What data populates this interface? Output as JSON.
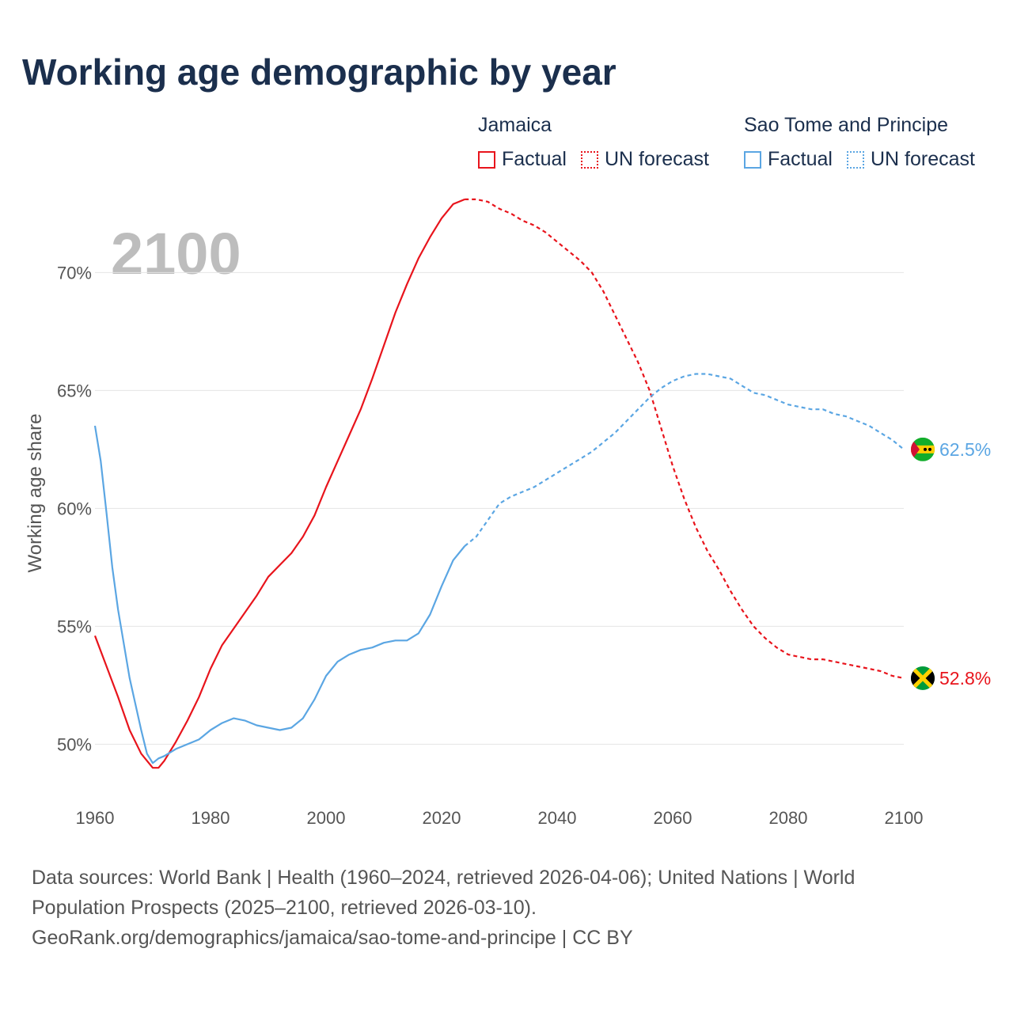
{
  "title": "Working age demographic by year",
  "year_display": "2100",
  "legend": {
    "jamaica": {
      "name": "Jamaica",
      "factual": "Factual",
      "forecast": "UN forecast",
      "color": "#e8141c"
    },
    "stp": {
      "name": "Sao Tome and Principe",
      "factual": "Factual",
      "forecast": "UN forecast",
      "color": "#5ba6e3"
    }
  },
  "source": {
    "line1": "Data sources: World Bank | Health (1960–2024, retrieved 2026-04-06); United Nations | World",
    "line2": "Population Prospects (2025–2100, retrieved 2026-03-10).",
    "line3": "GeoRank.org/demographics/jamaica/sao-tome-and-principe | CC BY"
  },
  "chart_data": {
    "type": "line",
    "ylabel": "Working age share",
    "xlabel": "",
    "xlim": [
      1960,
      2100
    ],
    "ylim": [
      48,
      73.5
    ],
    "x_ticks": [
      "1960",
      "1980",
      "2000",
      "2020",
      "2040",
      "2060",
      "2080",
      "2100"
    ],
    "y_ticks": [
      "50%",
      "55%",
      "60%",
      "65%",
      "70%"
    ],
    "y_tick_values": [
      50,
      55,
      60,
      65,
      70
    ],
    "factual_end_year": 2024,
    "series": [
      {
        "name": "Jamaica",
        "color": "#e8141c",
        "end_label": "52.8%",
        "flag": "jamaica-flag",
        "points": [
          [
            1960,
            54.6
          ],
          [
            1962,
            53.3
          ],
          [
            1964,
            52.0
          ],
          [
            1966,
            50.6
          ],
          [
            1968,
            49.6
          ],
          [
            1970,
            49.0
          ],
          [
            1971,
            49.0
          ],
          [
            1972,
            49.3
          ],
          [
            1974,
            50.1
          ],
          [
            1976,
            51.0
          ],
          [
            1978,
            52.0
          ],
          [
            1980,
            53.2
          ],
          [
            1982,
            54.2
          ],
          [
            1984,
            54.9
          ],
          [
            1986,
            55.6
          ],
          [
            1988,
            56.3
          ],
          [
            1990,
            57.1
          ],
          [
            1992,
            57.6
          ],
          [
            1994,
            58.1
          ],
          [
            1996,
            58.8
          ],
          [
            1998,
            59.7
          ],
          [
            2000,
            60.9
          ],
          [
            2002,
            62.0
          ],
          [
            2004,
            63.1
          ],
          [
            2006,
            64.2
          ],
          [
            2008,
            65.5
          ],
          [
            2010,
            66.9
          ],
          [
            2012,
            68.3
          ],
          [
            2014,
            69.5
          ],
          [
            2016,
            70.6
          ],
          [
            2018,
            71.5
          ],
          [
            2020,
            72.3
          ],
          [
            2022,
            72.9
          ],
          [
            2024,
            73.1
          ],
          [
            2026,
            73.1
          ],
          [
            2028,
            73.0
          ],
          [
            2030,
            72.7
          ],
          [
            2032,
            72.5
          ],
          [
            2034,
            72.2
          ],
          [
            2036,
            72.0
          ],
          [
            2038,
            71.7
          ],
          [
            2040,
            71.3
          ],
          [
            2042,
            70.9
          ],
          [
            2044,
            70.5
          ],
          [
            2046,
            70.0
          ],
          [
            2048,
            69.2
          ],
          [
            2050,
            68.2
          ],
          [
            2052,
            67.2
          ],
          [
            2054,
            66.2
          ],
          [
            2056,
            65.0
          ],
          [
            2058,
            63.4
          ],
          [
            2060,
            61.8
          ],
          [
            2062,
            60.4
          ],
          [
            2064,
            59.2
          ],
          [
            2066,
            58.2
          ],
          [
            2068,
            57.4
          ],
          [
            2070,
            56.5
          ],
          [
            2072,
            55.7
          ],
          [
            2074,
            55.0
          ],
          [
            2076,
            54.5
          ],
          [
            2078,
            54.1
          ],
          [
            2080,
            53.8
          ],
          [
            2082,
            53.7
          ],
          [
            2084,
            53.6
          ],
          [
            2086,
            53.6
          ],
          [
            2088,
            53.5
          ],
          [
            2090,
            53.4
          ],
          [
            2092,
            53.3
          ],
          [
            2094,
            53.2
          ],
          [
            2096,
            53.1
          ],
          [
            2098,
            52.9
          ],
          [
            2100,
            52.8
          ]
        ]
      },
      {
        "name": "Sao Tome and Principe",
        "color": "#5ba6e3",
        "end_label": "62.5%",
        "flag": "sao-tome-and-principe-flag",
        "points": [
          [
            1960,
            63.5
          ],
          [
            1961,
            62.0
          ],
          [
            1962,
            59.8
          ],
          [
            1963,
            57.5
          ],
          [
            1964,
            55.7
          ],
          [
            1966,
            52.8
          ],
          [
            1968,
            50.6
          ],
          [
            1969,
            49.6
          ],
          [
            1970,
            49.2
          ],
          [
            1971,
            49.4
          ],
          [
            1972,
            49.5
          ],
          [
            1974,
            49.8
          ],
          [
            1976,
            50.0
          ],
          [
            1978,
            50.2
          ],
          [
            1980,
            50.6
          ],
          [
            1982,
            50.9
          ],
          [
            1984,
            51.1
          ],
          [
            1986,
            51.0
          ],
          [
            1988,
            50.8
          ],
          [
            1990,
            50.7
          ],
          [
            1992,
            50.6
          ],
          [
            1994,
            50.7
          ],
          [
            1996,
            51.1
          ],
          [
            1998,
            51.9
          ],
          [
            2000,
            52.9
          ],
          [
            2002,
            53.5
          ],
          [
            2004,
            53.8
          ],
          [
            2006,
            54.0
          ],
          [
            2008,
            54.1
          ],
          [
            2010,
            54.3
          ],
          [
            2012,
            54.4
          ],
          [
            2014,
            54.4
          ],
          [
            2016,
            54.7
          ],
          [
            2018,
            55.5
          ],
          [
            2020,
            56.7
          ],
          [
            2022,
            57.8
          ],
          [
            2024,
            58.4
          ],
          [
            2026,
            58.8
          ],
          [
            2028,
            59.5
          ],
          [
            2030,
            60.2
          ],
          [
            2032,
            60.5
          ],
          [
            2034,
            60.7
          ],
          [
            2036,
            60.9
          ],
          [
            2038,
            61.2
          ],
          [
            2040,
            61.5
          ],
          [
            2042,
            61.8
          ],
          [
            2044,
            62.1
          ],
          [
            2046,
            62.4
          ],
          [
            2048,
            62.8
          ],
          [
            2050,
            63.2
          ],
          [
            2052,
            63.7
          ],
          [
            2054,
            64.2
          ],
          [
            2056,
            64.7
          ],
          [
            2058,
            65.1
          ],
          [
            2060,
            65.4
          ],
          [
            2062,
            65.6
          ],
          [
            2064,
            65.7
          ],
          [
            2066,
            65.7
          ],
          [
            2068,
            65.6
          ],
          [
            2070,
            65.5
          ],
          [
            2072,
            65.2
          ],
          [
            2074,
            64.9
          ],
          [
            2076,
            64.8
          ],
          [
            2078,
            64.6
          ],
          [
            2080,
            64.4
          ],
          [
            2082,
            64.3
          ],
          [
            2084,
            64.2
          ],
          [
            2086,
            64.2
          ],
          [
            2088,
            64.0
          ],
          [
            2090,
            63.9
          ],
          [
            2092,
            63.7
          ],
          [
            2094,
            63.5
          ],
          [
            2096,
            63.2
          ],
          [
            2098,
            62.9
          ],
          [
            2100,
            62.5
          ]
        ]
      }
    ]
  }
}
